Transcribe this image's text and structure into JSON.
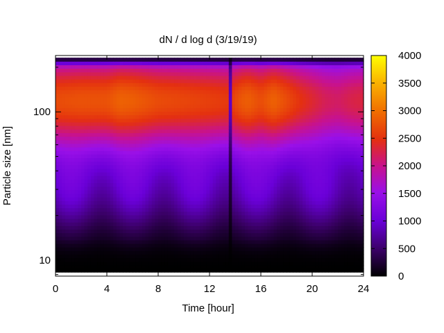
{
  "chart_data": {
    "type": "heatmap",
    "title": "dN / d log d (3/19/19)",
    "xlabel": "Time [hour]",
    "ylabel": "Particle size [nm]",
    "x_ticks": [
      0,
      4,
      8,
      12,
      16,
      20,
      24
    ],
    "xlim": [
      0,
      24
    ],
    "y_scale": "log",
    "y_ticks": [
      10,
      100
    ],
    "ylim": [
      7.8,
      240
    ],
    "colorbar": {
      "ticks": [
        0,
        500,
        1000,
        1500,
        2000,
        2500,
        3000,
        3500,
        4000
      ],
      "range": [
        0,
        4000
      ],
      "palette": "gnuplot pm3d (black-purple-red-orange-yellow)"
    },
    "grid": false,
    "legend": "none",
    "mode_diameter_nm": 120,
    "peak_value": 2900,
    "gap_hour": 13.7,
    "series": [
      {
        "x": [
          0,
          2,
          4,
          5,
          6,
          8,
          10,
          12,
          13.5,
          14.5,
          15,
          16,
          17,
          18,
          19,
          20,
          21,
          22,
          23,
          24
        ],
        "peak_value": [
          2700,
          2750,
          2750,
          2880,
          2850,
          2700,
          2650,
          2600,
          2550,
          2800,
          2850,
          2700,
          2880,
          2700,
          2500,
          2350,
          2200,
          2150,
          2250,
          2300
        ]
      }
    ]
  }
}
